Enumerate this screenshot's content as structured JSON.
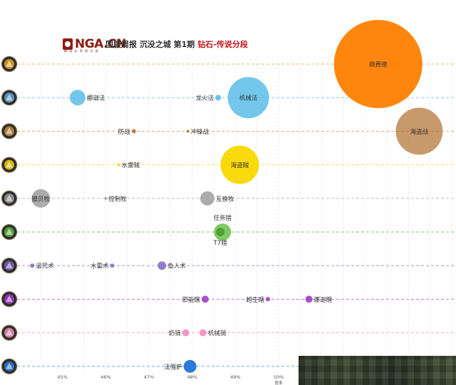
{
  "header": {
    "logo_text": "NGA.CN",
    "logo_sub": "精 英 玩 家 俱 乐 部",
    "title": "国服周报 沉没之城 第1期",
    "title_accent": "钻石-传说分段"
  },
  "chart_data": {
    "type": "scatter",
    "xlabel": "胜率",
    "x_ticks": [
      "45%",
      "46%",
      "47%",
      "48%",
      "49%",
      "50%"
    ],
    "xlim": [
      44.05,
      54.1
    ],
    "grid": true,
    "classes": [
      {
        "icon": "warlock-icon",
        "line_color": "#f0a020"
      },
      {
        "icon": "mage-icon",
        "line_color": "#5aa8dc"
      },
      {
        "icon": "warrior-icon",
        "line_color": "#c68a3c"
      },
      {
        "icon": "rogue-icon",
        "line_color": "#f5cf00"
      },
      {
        "icon": "priest-icon",
        "line_color": "#9a9a9a"
      },
      {
        "icon": "hunter-icon",
        "line_color": "#57b33e"
      },
      {
        "icon": "druid-icon",
        "line_color": "#7a5fb8"
      },
      {
        "icon": "demonhunter-icon",
        "line_color": "#a33bc8"
      },
      {
        "icon": "paladin-icon",
        "line_color": "#f08ab8"
      },
      {
        "icon": "shaman-icon",
        "line_color": "#2a7ad8"
      }
    ],
    "points": [
      {
        "name": "跳费德",
        "class": 0,
        "x": 52.3,
        "r": 62,
        "color": "#ff8000",
        "opacity": 0.95,
        "label_pos": "center"
      },
      {
        "name": "娜迦法",
        "class": 1,
        "x": 45.35,
        "r": 11,
        "color": "#5bbde8",
        "opacity": 0.85,
        "label_pos": "right"
      },
      {
        "name": "龙火法",
        "class": 1,
        "x": 48.6,
        "r": 4,
        "color": "#5bbde8",
        "opacity": 0.9,
        "label_pos": "left"
      },
      {
        "name": "机械法",
        "class": 1,
        "x": 49.3,
        "r": 29,
        "color": "#5bbde8",
        "opacity": 0.85,
        "label_pos": "center"
      },
      {
        "name": "海盗战",
        "class": 2,
        "x": 53.25,
        "r": 33,
        "color": "#b5773a",
        "opacity": 0.75,
        "label_pos": "center"
      },
      {
        "name": "防战",
        "class": 2,
        "x": 46.65,
        "r": 3,
        "color": "#b5773a",
        "opacity": 0.9,
        "label_pos": "left"
      },
      {
        "name": "冲锋战",
        "class": 2,
        "x": 47.9,
        "r": 2,
        "color": "#b5773a",
        "opacity": 0.9,
        "label_pos": "right"
      },
      {
        "name": "海盗贼",
        "class": 3,
        "x": 49.1,
        "r": 27,
        "color": "#f8d800",
        "opacity": 0.95,
        "label_pos": "center"
      },
      {
        "name": "水雷贼",
        "class": 3,
        "x": 46.3,
        "r": 2,
        "color": "#f8d800",
        "opacity": 0.9,
        "label_pos": "right"
      },
      {
        "name": "膜贝牧",
        "class": 4,
        "x": 44.5,
        "r": 13,
        "color": "#a3a3a3",
        "opacity": 0.9,
        "label_pos": "center"
      },
      {
        "name": "控制牧",
        "class": 4,
        "x": 46.0,
        "r": 2,
        "color": "#a3a3a3",
        "opacity": 0.9,
        "label_pos": "right"
      },
      {
        "name": "互换牧",
        "class": 4,
        "x": 48.35,
        "r": 10,
        "color": "#a3a3a3",
        "opacity": 0.9,
        "label_pos": "right"
      },
      {
        "name": "任务猎",
        "class": 5,
        "x": 48.7,
        "r": 12,
        "color": "#6cc04a",
        "opacity": 0.85,
        "label_pos": "above"
      },
      {
        "name": "T7猎",
        "class": 5,
        "x": 48.65,
        "r": 6,
        "color": "#4c9a30",
        "opacity": 0.9,
        "label_pos": "below"
      },
      {
        "name": "诅咒术",
        "class": 6,
        "x": 44.3,
        "r": 3,
        "color": "#8a6fc8",
        "opacity": 0.9,
        "label_pos": "right"
      },
      {
        "name": "水雷术",
        "class": 6,
        "x": 46.15,
        "r": 3,
        "color": "#8a6fc8",
        "opacity": 0.9,
        "label_pos": "left"
      },
      {
        "name": "鱼人术",
        "class": 6,
        "x": 47.3,
        "r": 6,
        "color": "#8a6fc8",
        "opacity": 0.9,
        "label_pos": "right"
      },
      {
        "name": "邪能瞎",
        "class": 7,
        "x": 48.3,
        "r": 5,
        "color": "#a33bc8",
        "opacity": 0.9,
        "label_pos": "left"
      },
      {
        "name": "超生瞎",
        "class": 7,
        "x": 49.75,
        "r": 3,
        "color": "#a33bc8",
        "opacity": 0.9,
        "label_pos": "left"
      },
      {
        "name": "娜迦瞎",
        "class": 7,
        "x": 50.7,
        "r": 5,
        "color": "#a33bc8",
        "opacity": 0.9,
        "label_pos": "right"
      },
      {
        "name": "奶骑",
        "class": 8,
        "x": 47.85,
        "r": 5,
        "color": "#f28cbf",
        "opacity": 0.9,
        "label_pos": "left"
      },
      {
        "name": "机械骑",
        "class": 8,
        "x": 48.25,
        "r": 5,
        "color": "#f28cbf",
        "opacity": 0.9,
        "label_pos": "right"
      },
      {
        "name": "法强萨",
        "class": 9,
        "x": 47.95,
        "r": 9,
        "color": "#1f73d6",
        "opacity": 0.95,
        "label_pos": "left"
      }
    ]
  }
}
